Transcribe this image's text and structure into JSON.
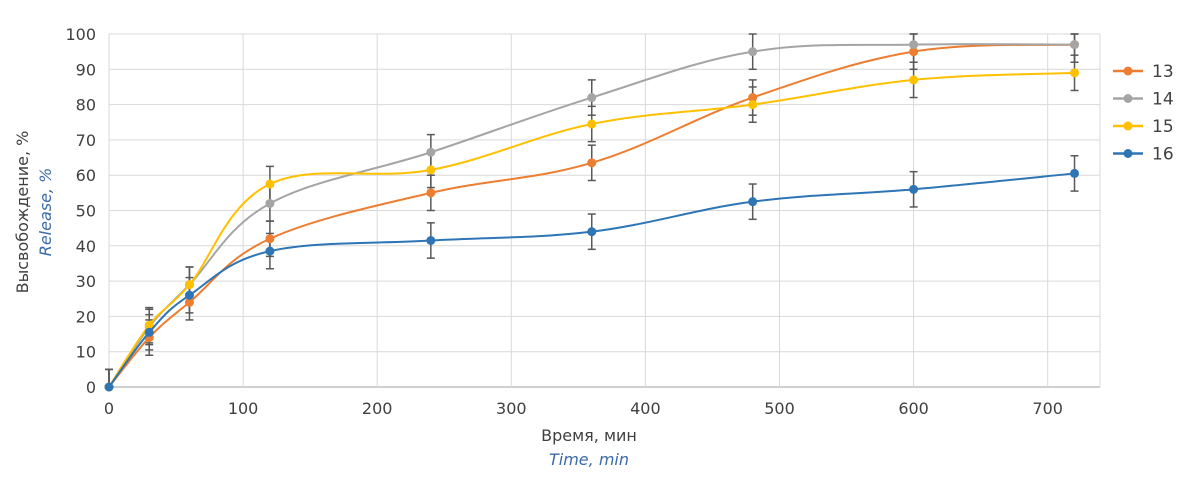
{
  "chart_data": {
    "type": "line",
    "title": "",
    "xlabel": "Время, мин",
    "xlabel_en": "Time, min",
    "ylabel": "Высвобождение, %",
    "ylabel_en": "Release, %",
    "xlim": [
      0,
      740
    ],
    "ylim": [
      0,
      100
    ],
    "xticks": [
      0,
      100,
      200,
      300,
      400,
      500,
      600,
      700
    ],
    "yticks": [
      0,
      10,
      20,
      30,
      40,
      50,
      60,
      70,
      80,
      90,
      100
    ],
    "grid": true,
    "legend_position": "right",
    "smooth": true,
    "x": [
      0,
      30,
      60,
      120,
      240,
      360,
      480,
      600,
      720
    ],
    "error": 5,
    "series": [
      {
        "name": "13",
        "color": "#ed7d31",
        "values": [
          0,
          14,
          24,
          42,
          55,
          63.5,
          82,
          95,
          97
        ]
      },
      {
        "name": "14",
        "color": "#a5a5a5",
        "values": [
          0,
          17,
          29,
          52,
          66.5,
          82,
          95,
          97,
          97
        ]
      },
      {
        "name": "15",
        "color": "#ffc000",
        "values": [
          0,
          17.5,
          29,
          57.5,
          61.5,
          74.5,
          80,
          87,
          89
        ]
      },
      {
        "name": "16",
        "color": "#2e75b6",
        "values": [
          0,
          15.5,
          26,
          38.5,
          41.5,
          44,
          52.5,
          56,
          60.5
        ]
      }
    ]
  }
}
